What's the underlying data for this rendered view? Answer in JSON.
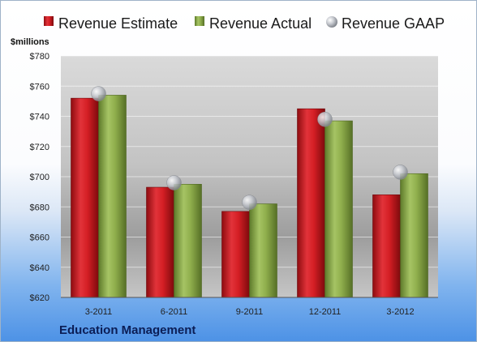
{
  "chart_data": {
    "type": "bar",
    "categories": [
      "3-2011",
      "6-2011",
      "9-2011",
      "12-2011",
      "3-2012"
    ],
    "series": [
      {
        "name": "Revenue Estimate",
        "values": [
          752,
          693,
          677,
          745,
          688
        ],
        "color": "#d41e24"
      },
      {
        "name": "Revenue Actual",
        "values": [
          754,
          695,
          682,
          737,
          702
        ],
        "color": "#8fae4c"
      },
      {
        "name": "Revenue GAAP",
        "values": [
          755,
          696,
          683,
          738,
          703
        ],
        "marker": "sphere",
        "color": "#b9bcc2"
      }
    ],
    "ylabel": "$millions",
    "ylim": [
      620,
      780
    ],
    "yticks": [
      620,
      640,
      660,
      680,
      700,
      720,
      740,
      760,
      780
    ],
    "yticklabels": [
      "$620",
      "$640",
      "$660",
      "$680",
      "$700",
      "$720",
      "$740",
      "$760",
      "$780"
    ],
    "grid": true,
    "legend": "top",
    "footer": "Education Management"
  }
}
